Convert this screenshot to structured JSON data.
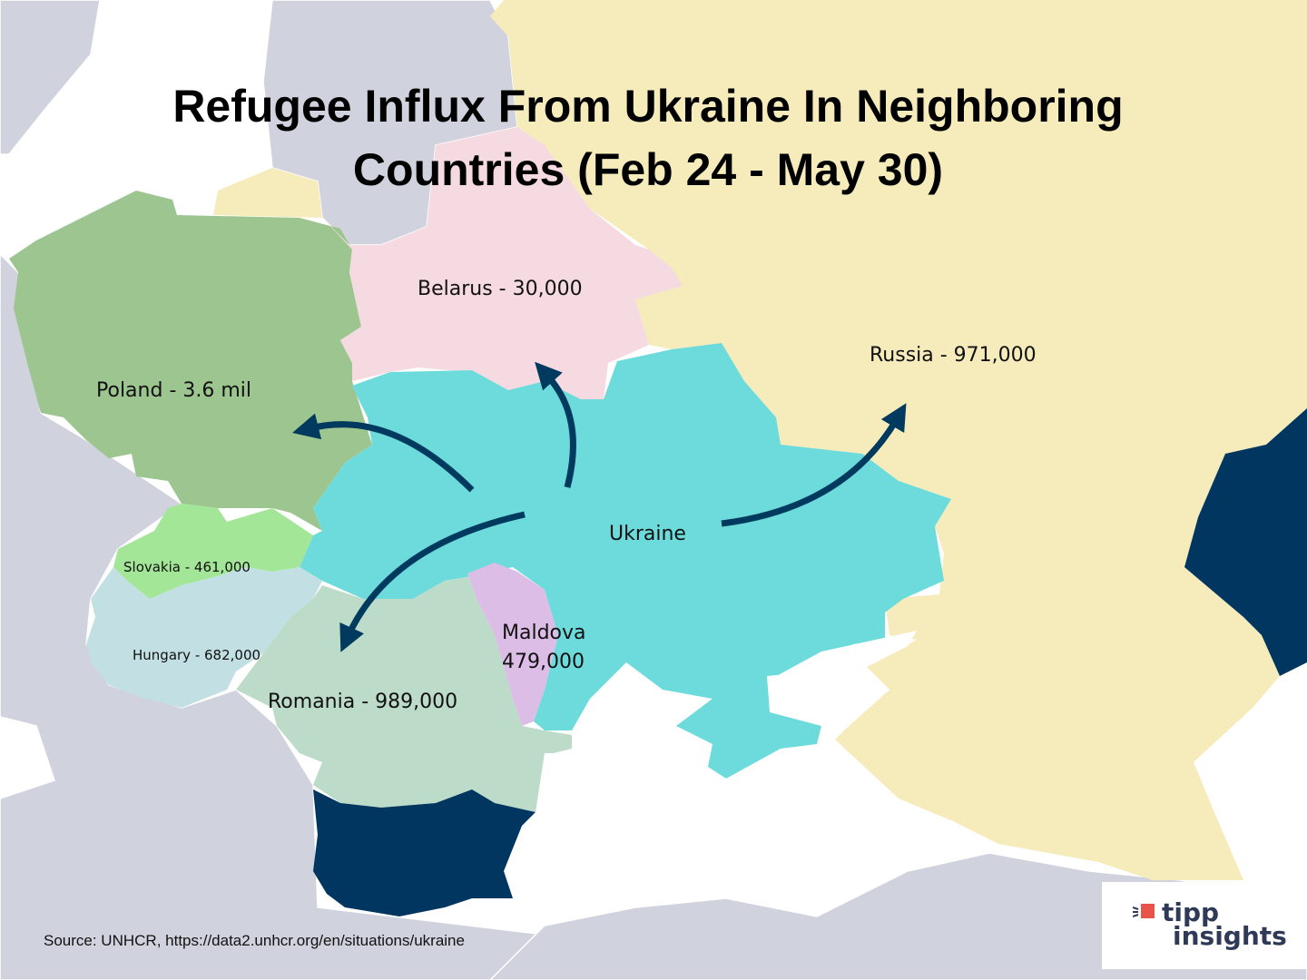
{
  "title": {
    "line1": "Refugee Influx From Ukraine In Neighboring",
    "line2": "Countries (Feb 24 - May 30)"
  },
  "countries": [
    {
      "name": "Poland",
      "label": "Poland - 3.6 mil",
      "refugees": 3600000,
      "color": "#9dc58f"
    },
    {
      "name": "Belarus",
      "label": "Belarus - 30,000",
      "refugees": 30000,
      "color": "#f5dae2"
    },
    {
      "name": "Russia",
      "label": "Russia - 971,000",
      "refugees": 971000,
      "color": "#f5ebbb"
    },
    {
      "name": "Ukraine",
      "label": "Ukraine",
      "color": "#6ddbdb"
    },
    {
      "name": "Slovakia",
      "label": "Slovakia - 461,000",
      "refugees": 461000,
      "color": "#a3e697"
    },
    {
      "name": "Hungary",
      "label": "Hungary - 682,000",
      "refugees": 682000,
      "color": "#c2dfe3"
    },
    {
      "name": "Romania",
      "label": "Romania - 989,000",
      "refugees": 989000,
      "color": "#bddbc9"
    },
    {
      "name": "Moldova",
      "label_line1": "Maldova",
      "label_line2": "479,000",
      "refugees": 479000,
      "color": "#dcbde6"
    }
  ],
  "colors": {
    "other_land": "#d0d2de",
    "sea": "#ffffff",
    "highlight_dark": "#00365f",
    "arrow": "#003a5e"
  },
  "source": "Source: UNHCR, https://data2.unhcr.org/en/situations/ukraine",
  "logo": {
    "line1": "tipp",
    "line2": "insights",
    "accent": "#e8534a"
  }
}
